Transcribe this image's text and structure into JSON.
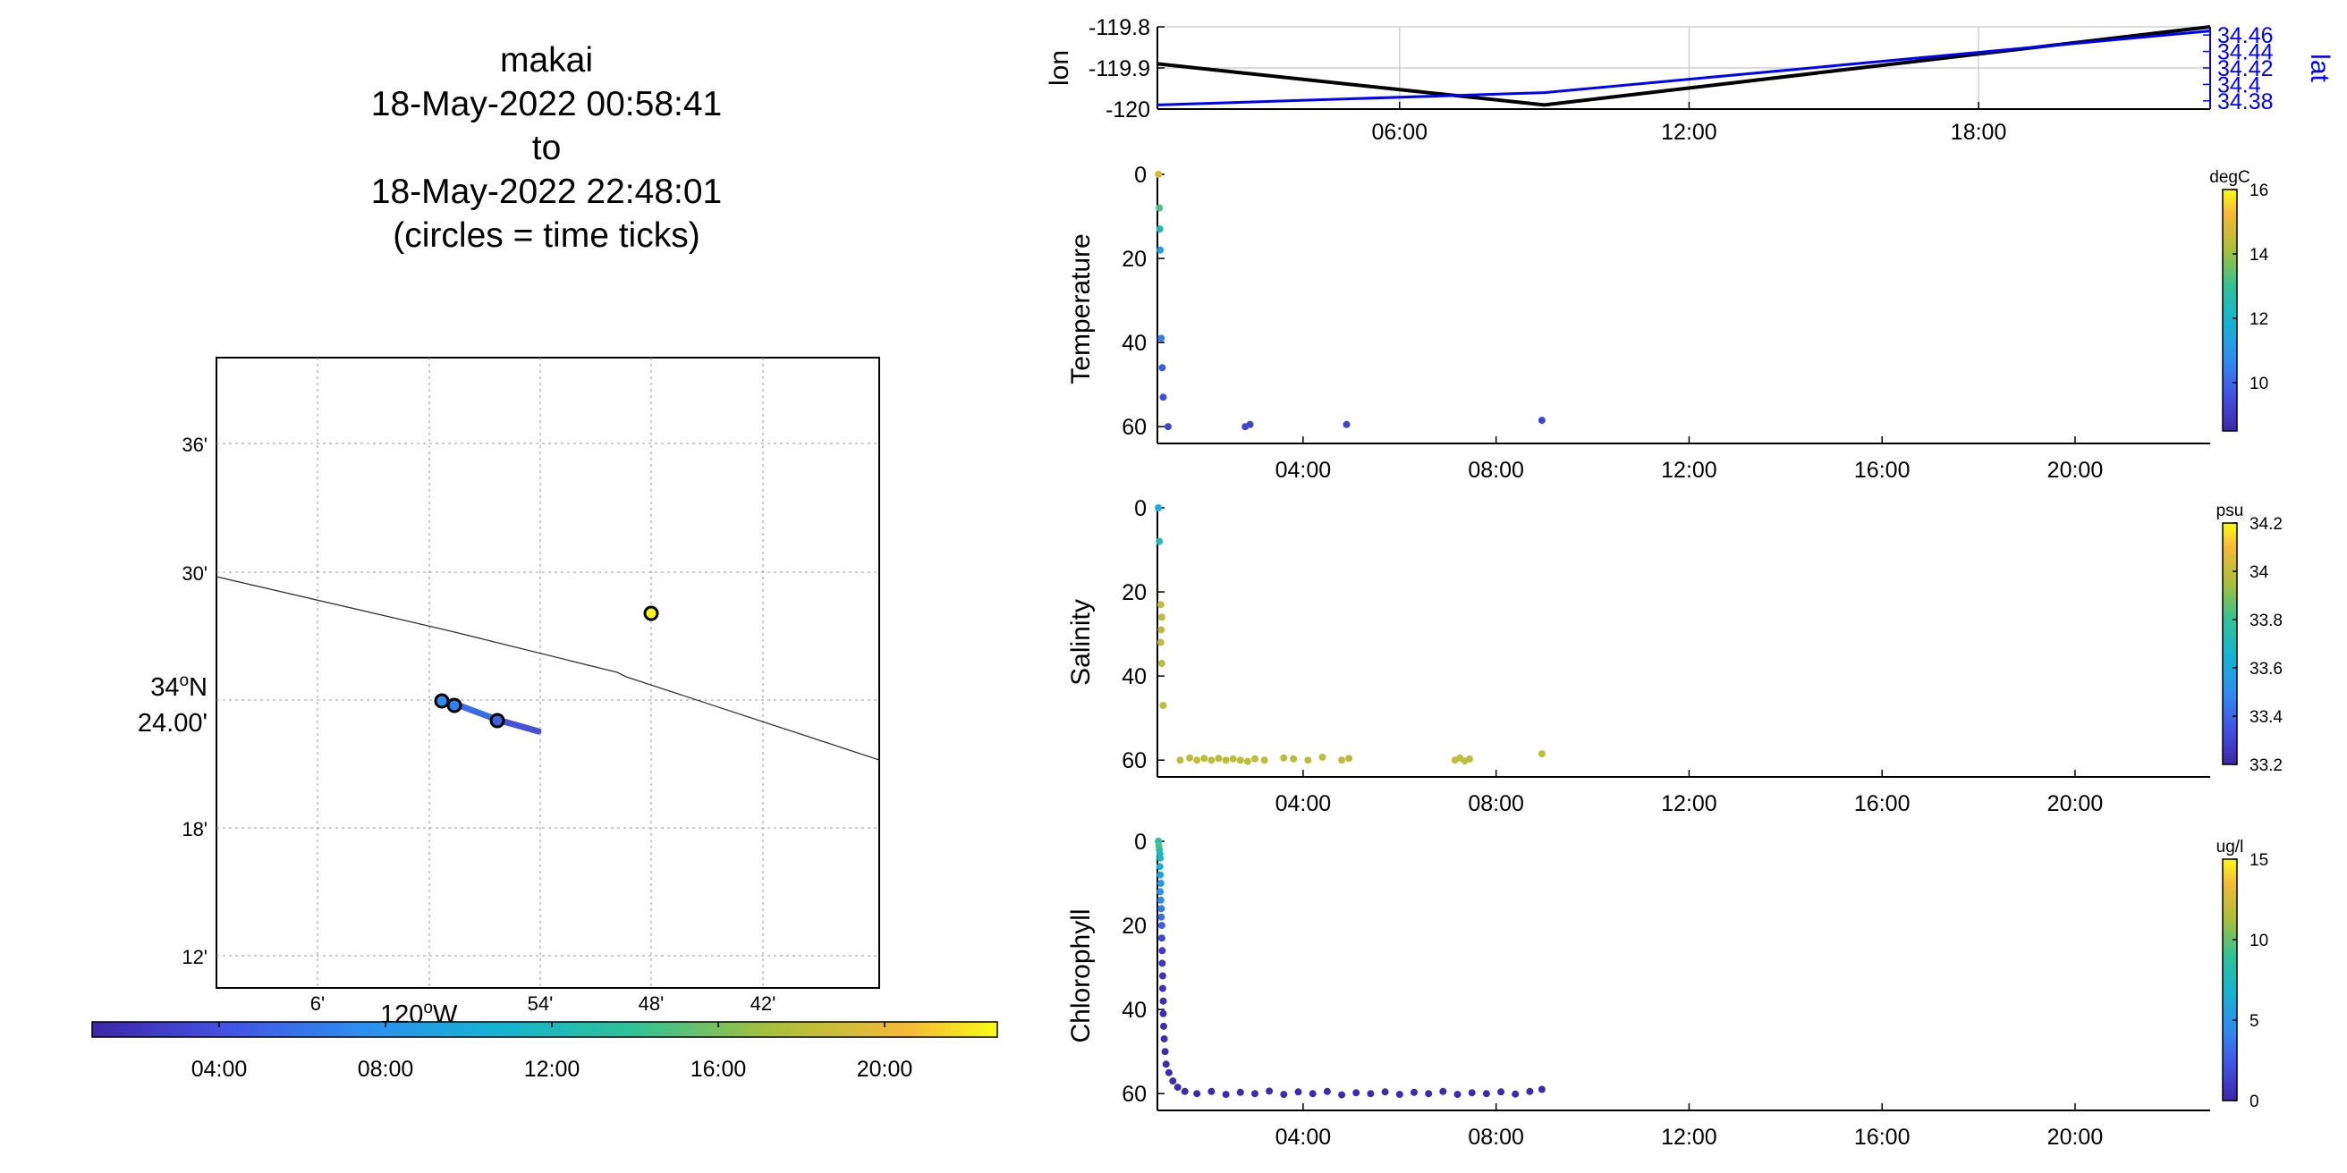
{
  "title": {
    "line1": "makai",
    "line2": "18-May-2022 00:58:41",
    "line3": "to",
    "line4": "18-May-2022 22:48:01",
    "line5": "(circles = time ticks)"
  },
  "map": {
    "lat_ticks": [
      "36'",
      "30'",
      "18'",
      "12'"
    ],
    "lat_center_deg": "34",
    "lat_center_hem": "N",
    "lat_center_min": "24.00'",
    "lon_ticks": [
      "6'",
      "54'",
      "48'",
      "42'"
    ],
    "lon_center_deg": "120",
    "lon_center_hem": "W",
    "degree_symbol": "o",
    "time_colorbar_ticks": [
      "04:00",
      "08:00",
      "12:00",
      "16:00",
      "20:00"
    ]
  },
  "colors": {
    "lon_line": "#000000",
    "lat_line": "#0000ff",
    "grid": "#d0d0d0"
  },
  "chart_data": [
    {
      "type": "line",
      "ylabel": "lon",
      "ylabel_right": "lat",
      "x_ticks": [
        "06:00",
        "12:00",
        "18:00"
      ],
      "y_ticks": [
        "-119.8",
        "-119.9",
        "-120"
      ],
      "y_ticks_right": [
        "34.46",
        "34.44",
        "34.42",
        "34.4",
        "34.38"
      ],
      "ylim": [
        -120,
        -119.8
      ],
      "ylim_right": [
        34.37,
        34.47
      ],
      "xlim_hours": [
        0.98,
        22.8
      ],
      "grid": true,
      "series": [
        {
          "axis": "left",
          "x": [
            0.98,
            9.0,
            22.8
          ],
          "y": [
            -119.89,
            -119.99,
            -119.8
          ]
        },
        {
          "axis": "right",
          "x": [
            0.98,
            9.0,
            22.8
          ],
          "y": [
            34.375,
            34.39,
            34.465
          ]
        }
      ]
    },
    {
      "type": "scatter",
      "ylabel": "Temperature",
      "colorbar_label": "degC",
      "colorbar_ticks": [
        "16",
        "14",
        "12",
        "10"
      ],
      "colorbar_range": [
        8.5,
        16
      ],
      "x_ticks": [
        "04:00",
        "08:00",
        "12:00",
        "16:00",
        "20:00"
      ],
      "y_ticks": [
        "0",
        "20",
        "40",
        "60"
      ],
      "ylim": [
        64,
        0
      ],
      "xlim_hours": [
        0.98,
        22.8
      ],
      "points": [
        {
          "x": 1.0,
          "y": 0,
          "c": 14.5
        },
        {
          "x": 1.02,
          "y": 8,
          "c": 13.0
        },
        {
          "x": 1.03,
          "y": 13,
          "c": 12.2
        },
        {
          "x": 1.04,
          "y": 18,
          "c": 11.2
        },
        {
          "x": 1.06,
          "y": 39,
          "c": 10.3
        },
        {
          "x": 1.08,
          "y": 46,
          "c": 9.7
        },
        {
          "x": 1.1,
          "y": 53,
          "c": 9.4
        },
        {
          "x": 1.2,
          "y": 60,
          "c": 9.2
        },
        {
          "x": 2.8,
          "y": 60,
          "c": 9.2
        },
        {
          "x": 2.9,
          "y": 59.5,
          "c": 9.2
        },
        {
          "x": 4.9,
          "y": 59.5,
          "c": 9.2
        },
        {
          "x": 8.95,
          "y": 58.5,
          "c": 9.2
        }
      ]
    },
    {
      "type": "scatter",
      "ylabel": "Salinity",
      "colorbar_label": "psu",
      "colorbar_ticks": [
        "34.2",
        "34",
        "33.8",
        "33.6",
        "33.4",
        "33.2"
      ],
      "colorbar_range": [
        33.2,
        34.2
      ],
      "x_ticks": [
        "04:00",
        "08:00",
        "12:00",
        "16:00",
        "20:00"
      ],
      "y_ticks": [
        "0",
        "20",
        "40",
        "60"
      ],
      "ylim": [
        64,
        0
      ],
      "xlim_hours": [
        0.98,
        22.8
      ],
      "points": [
        {
          "x": 1.0,
          "y": 0,
          "c": 33.6
        },
        {
          "x": 1.02,
          "y": 8,
          "c": 33.7
        },
        {
          "x": 1.05,
          "y": 23,
          "c": 33.95
        },
        {
          "x": 1.07,
          "y": 26,
          "c": 33.95
        },
        {
          "x": 1.06,
          "y": 29,
          "c": 33.95
        },
        {
          "x": 1.05,
          "y": 32,
          "c": 33.95
        },
        {
          "x": 1.07,
          "y": 37,
          "c": 33.95
        },
        {
          "x": 1.1,
          "y": 47,
          "c": 33.95
        },
        {
          "x": 1.45,
          "y": 60,
          "c": 33.95
        },
        {
          "x": 1.65,
          "y": 59.5,
          "c": 33.95
        },
        {
          "x": 1.8,
          "y": 60,
          "c": 33.95
        },
        {
          "x": 1.95,
          "y": 59.6,
          "c": 33.95
        },
        {
          "x": 2.1,
          "y": 60,
          "c": 33.95
        },
        {
          "x": 2.25,
          "y": 59.6,
          "c": 33.95
        },
        {
          "x": 2.4,
          "y": 60,
          "c": 33.95
        },
        {
          "x": 2.55,
          "y": 59.7,
          "c": 33.95
        },
        {
          "x": 2.7,
          "y": 60,
          "c": 33.95
        },
        {
          "x": 2.85,
          "y": 60.3,
          "c": 33.95
        },
        {
          "x": 3.0,
          "y": 59.7,
          "c": 33.95
        },
        {
          "x": 3.2,
          "y": 60,
          "c": 33.95
        },
        {
          "x": 3.6,
          "y": 59.5,
          "c": 33.95
        },
        {
          "x": 3.8,
          "y": 59.7,
          "c": 33.95
        },
        {
          "x": 4.1,
          "y": 60,
          "c": 33.95
        },
        {
          "x": 4.4,
          "y": 59.3,
          "c": 33.95
        },
        {
          "x": 4.8,
          "y": 60,
          "c": 33.95
        },
        {
          "x": 4.95,
          "y": 59.6,
          "c": 33.95
        },
        {
          "x": 7.15,
          "y": 60,
          "c": 33.95
        },
        {
          "x": 7.25,
          "y": 59.5,
          "c": 33.95
        },
        {
          "x": 7.35,
          "y": 60.2,
          "c": 33.95
        },
        {
          "x": 7.45,
          "y": 59.7,
          "c": 33.95
        },
        {
          "x": 8.95,
          "y": 58.5,
          "c": 33.95
        }
      ]
    },
    {
      "type": "scatter",
      "ylabel": "Chlorophyll",
      "colorbar_label": "ug/l",
      "colorbar_ticks": [
        "15",
        "10",
        "5",
        "0"
      ],
      "colorbar_range": [
        0,
        15
      ],
      "x_ticks": [
        "04:00",
        "08:00",
        "12:00",
        "16:00",
        "20:00"
      ],
      "y_ticks": [
        "0",
        "20",
        "40",
        "60"
      ],
      "ylim": [
        64,
        0
      ],
      "xlim_hours": [
        0.98,
        22.8
      ],
      "points": [
        {
          "x": 1.0,
          "y": 0,
          "c": 8
        },
        {
          "x": 1.01,
          "y": 1,
          "c": 9
        },
        {
          "x": 1.02,
          "y": 2,
          "c": 8
        },
        {
          "x": 1.03,
          "y": 3,
          "c": 7
        },
        {
          "x": 1.04,
          "y": 4,
          "c": 7
        },
        {
          "x": 1.03,
          "y": 6,
          "c": 6
        },
        {
          "x": 1.04,
          "y": 8,
          "c": 5.5
        },
        {
          "x": 1.05,
          "y": 10,
          "c": 5
        },
        {
          "x": 1.04,
          "y": 12,
          "c": 4.5
        },
        {
          "x": 1.05,
          "y": 14,
          "c": 4
        },
        {
          "x": 1.06,
          "y": 16,
          "c": 3.5
        },
        {
          "x": 1.06,
          "y": 18,
          "c": 3
        },
        {
          "x": 1.07,
          "y": 20,
          "c": 2.5
        },
        {
          "x": 1.07,
          "y": 23,
          "c": 1.5
        },
        {
          "x": 1.08,
          "y": 26,
          "c": 1
        },
        {
          "x": 1.08,
          "y": 29,
          "c": 0.8
        },
        {
          "x": 1.09,
          "y": 32,
          "c": 0.6
        },
        {
          "x": 1.09,
          "y": 35,
          "c": 0.5
        },
        {
          "x": 1.1,
          "y": 38,
          "c": 0.4
        },
        {
          "x": 1.1,
          "y": 41,
          "c": 0.4
        },
        {
          "x": 1.11,
          "y": 44,
          "c": 0.3
        },
        {
          "x": 1.12,
          "y": 47,
          "c": 0.3
        },
        {
          "x": 1.14,
          "y": 50,
          "c": 0.3
        },
        {
          "x": 1.16,
          "y": 53,
          "c": 0.3
        },
        {
          "x": 1.22,
          "y": 55,
          "c": 0.3
        },
        {
          "x": 1.3,
          "y": 57,
          "c": 0.3
        },
        {
          "x": 1.4,
          "y": 58.5,
          "c": 0.3
        },
        {
          "x": 1.55,
          "y": 59.5,
          "c": 0.2
        },
        {
          "x": 1.8,
          "y": 60,
          "c": 0.2
        },
        {
          "x": 2.1,
          "y": 59.5,
          "c": 0.2
        },
        {
          "x": 2.4,
          "y": 60.2,
          "c": 0.2
        },
        {
          "x": 2.7,
          "y": 59.7,
          "c": 0.2
        },
        {
          "x": 3.0,
          "y": 60,
          "c": 0.2
        },
        {
          "x": 3.3,
          "y": 59.4,
          "c": 0.2
        },
        {
          "x": 3.6,
          "y": 60.2,
          "c": 0.2
        },
        {
          "x": 3.9,
          "y": 59.6,
          "c": 0.2
        },
        {
          "x": 4.2,
          "y": 60,
          "c": 0.2
        },
        {
          "x": 4.5,
          "y": 59.5,
          "c": 0.2
        },
        {
          "x": 4.8,
          "y": 60.3,
          "c": 0.2
        },
        {
          "x": 5.1,
          "y": 59.8,
          "c": 0.2
        },
        {
          "x": 5.4,
          "y": 60,
          "c": 0.2
        },
        {
          "x": 5.7,
          "y": 59.6,
          "c": 0.2
        },
        {
          "x": 6.0,
          "y": 60.2,
          "c": 0.2
        },
        {
          "x": 6.3,
          "y": 59.7,
          "c": 0.2
        },
        {
          "x": 6.6,
          "y": 60,
          "c": 0.2
        },
        {
          "x": 6.9,
          "y": 59.5,
          "c": 0.2
        },
        {
          "x": 7.2,
          "y": 60.2,
          "c": 0.2
        },
        {
          "x": 7.5,
          "y": 59.8,
          "c": 0.2
        },
        {
          "x": 7.8,
          "y": 60,
          "c": 0.2
        },
        {
          "x": 8.1,
          "y": 59.6,
          "c": 0.2
        },
        {
          "x": 8.4,
          "y": 60.1,
          "c": 0.2
        },
        {
          "x": 8.7,
          "y": 59.5,
          "c": 0.2
        },
        {
          "x": 8.95,
          "y": 59,
          "c": 0.2
        }
      ]
    }
  ]
}
